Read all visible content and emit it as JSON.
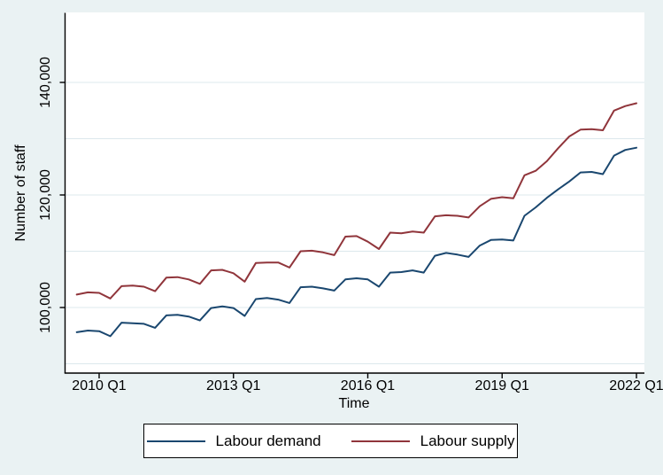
{
  "figure": {
    "background_color": "#eaf2f3",
    "plot_background_color": "#ffffff",
    "gridline_color": "#dce8ec",
    "axis_color": "#000000"
  },
  "chart_data": {
    "type": "line",
    "title": "",
    "xlabel": "Time",
    "ylabel": "Number of staff",
    "grid": true,
    "legend_position": "bottom",
    "ylim": [
      88500,
      151000
    ],
    "y_ticks": [
      {
        "value": 100000,
        "label": "100,000"
      },
      {
        "value": 120000,
        "label": "120,000"
      },
      {
        "value": 140000,
        "label": "140,000"
      }
    ],
    "y_gridlines": [
      90000,
      100000,
      110000,
      120000,
      130000,
      140000
    ],
    "x_ticks": [
      {
        "label": "2010 Q1",
        "q": 2
      },
      {
        "label": "2013 Q1",
        "q": 14
      },
      {
        "label": "2016 Q1",
        "q": 26
      },
      {
        "label": "2019 Q1",
        "q": 38
      },
      {
        "label": "2022 Q1",
        "q": 50
      }
    ],
    "categories": [
      "2009 Q3",
      "2009 Q4",
      "2010 Q1",
      "2010 Q2",
      "2010 Q3",
      "2010 Q4",
      "2011 Q1",
      "2011 Q2",
      "2011 Q3",
      "2011 Q4",
      "2012 Q1",
      "2012 Q2",
      "2012 Q3",
      "2012 Q4",
      "2013 Q1",
      "2013 Q2",
      "2013 Q3",
      "2013 Q4",
      "2014 Q1",
      "2014 Q2",
      "2014 Q3",
      "2014 Q4",
      "2015 Q1",
      "2015 Q2",
      "2015 Q3",
      "2015 Q4",
      "2016 Q1",
      "2016 Q2",
      "2016 Q3",
      "2016 Q4",
      "2017 Q1",
      "2017 Q2",
      "2017 Q3",
      "2017 Q4",
      "2018 Q1",
      "2018 Q2",
      "2018 Q3",
      "2018 Q4",
      "2019 Q1",
      "2019 Q2",
      "2019 Q3",
      "2019 Q4",
      "2020 Q1",
      "2020 Q2",
      "2020 Q3",
      "2020 Q4",
      "2021 Q1",
      "2021 Q2",
      "2021 Q3",
      "2021 Q4",
      "2022 Q1"
    ],
    "series": [
      {
        "name": "Labour demand",
        "color": "#1a476f",
        "values": [
          95600,
          95900,
          95800,
          94900,
          97300,
          97200,
          97100,
          96400,
          98600,
          98700,
          98400,
          97700,
          99900,
          100200,
          99900,
          98500,
          101500,
          101700,
          101400,
          100800,
          103600,
          103700,
          103400,
          103000,
          105000,
          105200,
          105000,
          103700,
          106200,
          106300,
          106600,
          106200,
          109200,
          109700,
          109400,
          109000,
          111000,
          112000,
          112100,
          111900,
          116300,
          117800,
          119500,
          121000,
          122400,
          124000,
          124100,
          123700,
          127000,
          128000,
          128400
        ]
      },
      {
        "name": "Labour supply",
        "color": "#90353b",
        "values": [
          102300,
          102700,
          102600,
          101600,
          103800,
          103900,
          103700,
          102900,
          105300,
          105400,
          105000,
          104200,
          106600,
          106700,
          106100,
          104600,
          107900,
          108000,
          108000,
          107100,
          110000,
          110100,
          109800,
          109300,
          112600,
          112700,
          111700,
          110400,
          113300,
          113200,
          113500,
          113300,
          116200,
          116400,
          116300,
          116000,
          118000,
          119300,
          119600,
          119400,
          123500,
          124300,
          126000,
          128300,
          130400,
          131600,
          131700,
          131500,
          135000,
          135800,
          136300
        ]
      }
    ]
  },
  "legend": {
    "entries": [
      {
        "label": "Labour demand",
        "color": "#1a476f"
      },
      {
        "label": "Labour supply",
        "color": "#90353b"
      }
    ]
  }
}
